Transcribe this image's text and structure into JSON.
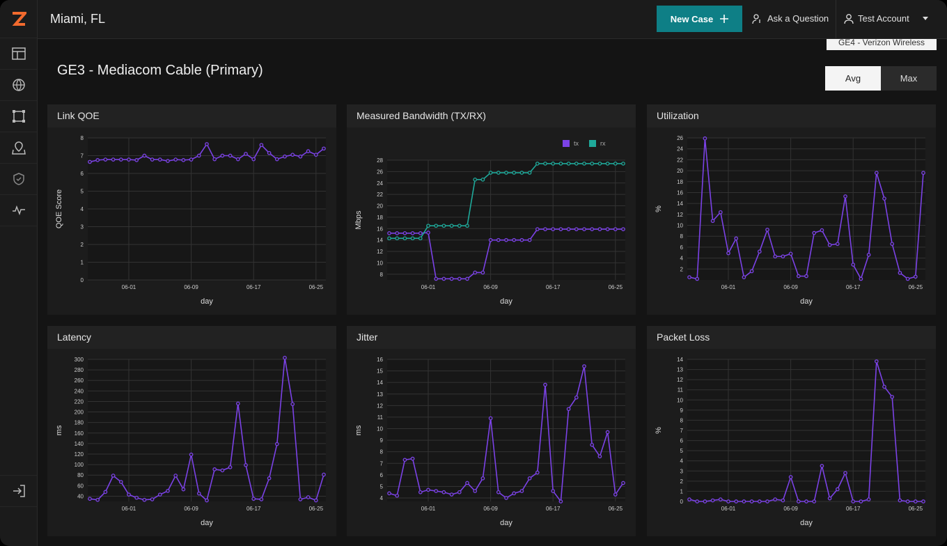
{
  "header": {
    "location": "Miami, FL",
    "new_case": "New Case",
    "ask": "Ask a Question",
    "account": "Test Account"
  },
  "page": {
    "hidden_selector": "GE4 - Verizon Wireless",
    "title": "GE3 - Mediacom Cable (Primary)",
    "toggle": [
      "Avg",
      "Max"
    ]
  },
  "chart_data": [
    {
      "type": "line",
      "title": "Link QOE",
      "x_label": "day",
      "y_label": "QOE Score",
      "grid": true,
      "x": [
        "05-27",
        "05-28",
        "05-29",
        "05-30",
        "05-31",
        "06-01",
        "06-02",
        "06-03",
        "06-04",
        "06-05",
        "06-06",
        "06-07",
        "06-08",
        "06-09",
        "06-10",
        "06-11",
        "06-12",
        "06-13",
        "06-14",
        "06-15",
        "06-16",
        "06-17",
        "06-18",
        "06-19",
        "06-20",
        "06-21",
        "06-22",
        "06-23",
        "06-24",
        "06-25",
        "06-26"
      ],
      "xticks": [
        "06-01",
        "06-09",
        "06-17",
        "06-25"
      ],
      "ylim": [
        0,
        8
      ],
      "yticks": [
        0,
        1,
        2,
        3,
        4,
        5,
        6,
        7,
        8
      ],
      "series": [
        {
          "color": "#7b42e6",
          "values": [
            6.65,
            6.75,
            6.78,
            6.78,
            6.78,
            6.78,
            6.75,
            7.0,
            6.78,
            6.78,
            6.7,
            6.78,
            6.75,
            6.78,
            7.0,
            7.65,
            6.8,
            7.0,
            7.0,
            6.8,
            7.1,
            6.8,
            7.6,
            7.15,
            6.8,
            6.95,
            7.05,
            6.95,
            7.25,
            7.05,
            7.4
          ]
        }
      ]
    },
    {
      "type": "line",
      "title": "Measured Bandwidth (TX/RX)",
      "x_label": "day",
      "y_label": "Mbps",
      "grid": true,
      "legend": "top-right",
      "x": [
        "05-27",
        "05-28",
        "05-29",
        "05-30",
        "05-31",
        "06-01",
        "06-02",
        "06-03",
        "06-04",
        "06-05",
        "06-06",
        "06-07",
        "06-08",
        "06-09",
        "06-10",
        "06-11",
        "06-12",
        "06-13",
        "06-14",
        "06-15",
        "06-16",
        "06-17",
        "06-18",
        "06-19",
        "06-20",
        "06-21",
        "06-22",
        "06-23",
        "06-24",
        "06-25",
        "06-26"
      ],
      "xticks": [
        "06-01",
        "06-09",
        "06-17",
        "06-25"
      ],
      "ylim": [
        7,
        28
      ],
      "yticks": [
        8,
        10,
        12,
        14,
        16,
        18,
        20,
        22,
        24,
        26,
        28
      ],
      "series": [
        {
          "name": "tx",
          "color": "#7b42e6",
          "values": [
            15.2,
            15.2,
            15.2,
            15.2,
            15.2,
            15.3,
            7.2,
            7.2,
            7.2,
            7.2,
            7.2,
            8.3,
            8.3,
            14,
            14,
            14,
            14,
            14,
            14,
            15.9,
            15.9,
            15.9,
            15.9,
            15.9,
            15.9,
            15.9,
            15.9,
            15.9,
            15.9,
            15.9,
            15.9
          ]
        },
        {
          "name": "rx",
          "color": "#1fa99a",
          "values": [
            14.3,
            14.3,
            14.3,
            14.3,
            14.3,
            16.5,
            16.5,
            16.5,
            16.5,
            16.5,
            16.5,
            24.6,
            24.6,
            25.8,
            25.8,
            25.8,
            25.8,
            25.8,
            25.8,
            27.4,
            27.4,
            27.4,
            27.4,
            27.4,
            27.4,
            27.4,
            27.4,
            27.4,
            27.4,
            27.4,
            27.4
          ]
        }
      ]
    },
    {
      "type": "line",
      "title": "Utilization",
      "x_label": "day",
      "y_label": "%",
      "grid": true,
      "x": [
        "05-27",
        "05-28",
        "05-29",
        "05-30",
        "05-31",
        "06-01",
        "06-02",
        "06-03",
        "06-04",
        "06-05",
        "06-06",
        "06-07",
        "06-08",
        "06-09",
        "06-10",
        "06-11",
        "06-12",
        "06-13",
        "06-14",
        "06-15",
        "06-16",
        "06-17",
        "06-18",
        "06-19",
        "06-20",
        "06-21",
        "06-22",
        "06-23",
        "06-24",
        "06-25",
        "06-26"
      ],
      "xticks": [
        "06-01",
        "06-09",
        "06-17",
        "06-25"
      ],
      "ylim": [
        0,
        26
      ],
      "yticks": [
        2,
        4,
        6,
        8,
        10,
        12,
        14,
        16,
        18,
        20,
        22,
        24,
        26
      ],
      "series": [
        {
          "color": "#7b42e6",
          "values": [
            0.5,
            0.2,
            25.9,
            10.8,
            12.4,
            4.9,
            7.6,
            0.5,
            1.6,
            5.2,
            9.2,
            4.3,
            4.3,
            4.8,
            0.7,
            0.7,
            8.6,
            9.1,
            6.4,
            6.6,
            15.3,
            2.8,
            0.2,
            4.6,
            19.6,
            14.9,
            6.6,
            1.3,
            0.2,
            0.6,
            19.6
          ]
        }
      ]
    },
    {
      "type": "line",
      "title": "Latency",
      "x_label": "day",
      "y_label": "ms",
      "grid": true,
      "x": [
        "05-27",
        "05-28",
        "05-29",
        "05-30",
        "05-31",
        "06-01",
        "06-02",
        "06-03",
        "06-04",
        "06-05",
        "06-06",
        "06-07",
        "06-08",
        "06-09",
        "06-10",
        "06-11",
        "06-12",
        "06-13",
        "06-14",
        "06-15",
        "06-16",
        "06-17",
        "06-18",
        "06-19",
        "06-20",
        "06-21",
        "06-22",
        "06-23",
        "06-24",
        "06-25",
        "06-26"
      ],
      "xticks": [
        "06-01",
        "06-09",
        "06-17",
        "06-25"
      ],
      "ylim": [
        30,
        300
      ],
      "yticks": [
        40,
        60,
        80,
        100,
        120,
        140,
        160,
        180,
        200,
        220,
        240,
        260,
        280,
        300
      ],
      "series": [
        {
          "color": "#7b42e6",
          "values": [
            35,
            33,
            48,
            79,
            67,
            43,
            37,
            33,
            34,
            43,
            50,
            79,
            53,
            119,
            45,
            32,
            91,
            89,
            95,
            216,
            99,
            35,
            34,
            74,
            139,
            303,
            215,
            34,
            38,
            32,
            81
          ]
        }
      ]
    },
    {
      "type": "line",
      "title": "Jitter",
      "x_label": "day",
      "y_label": "ms",
      "grid": true,
      "x": [
        "05-27",
        "05-28",
        "05-29",
        "05-30",
        "05-31",
        "06-01",
        "06-02",
        "06-03",
        "06-04",
        "06-05",
        "06-06",
        "06-07",
        "06-08",
        "06-09",
        "06-10",
        "06-11",
        "06-12",
        "06-13",
        "06-14",
        "06-15",
        "06-16",
        "06-17",
        "06-18",
        "06-19",
        "06-20",
        "06-21",
        "06-22",
        "06-23",
        "06-24",
        "06-25",
        "06-26"
      ],
      "xticks": [
        "06-01",
        "06-09",
        "06-17",
        "06-25"
      ],
      "ylim": [
        3.7,
        16
      ],
      "yticks": [
        4,
        5,
        6,
        7,
        8,
        9,
        10,
        11,
        12,
        13,
        14,
        15,
        16
      ],
      "series": [
        {
          "color": "#7b42e6",
          "values": [
            4.4,
            4.2,
            7.3,
            7.4,
            4.5,
            4.7,
            4.6,
            4.5,
            4.3,
            4.5,
            5.3,
            4.6,
            5.7,
            10.9,
            4.5,
            4.0,
            4.4,
            4.6,
            5.7,
            6.2,
            13.8,
            4.6,
            3.7,
            11.7,
            12.7,
            15.4,
            8.6,
            7.6,
            9.7,
            4.3,
            5.3
          ]
        }
      ]
    },
    {
      "type": "line",
      "title": "Packet Loss",
      "x_label": "day",
      "y_label": "%",
      "grid": true,
      "x": [
        "05-27",
        "05-28",
        "05-29",
        "05-30",
        "05-31",
        "06-01",
        "06-02",
        "06-03",
        "06-04",
        "06-05",
        "06-06",
        "06-07",
        "06-08",
        "06-09",
        "06-10",
        "06-11",
        "06-12",
        "06-13",
        "06-14",
        "06-15",
        "06-16",
        "06-17",
        "06-18",
        "06-19",
        "06-20",
        "06-21",
        "06-22",
        "06-23",
        "06-24",
        "06-25",
        "06-26"
      ],
      "xticks": [
        "06-01",
        "06-09",
        "06-17",
        "06-25"
      ],
      "ylim": [
        0,
        14
      ],
      "yticks": [
        0,
        1,
        2,
        3,
        4,
        5,
        6,
        7,
        8,
        9,
        10,
        11,
        12,
        13,
        14
      ],
      "series": [
        {
          "color": "#7b42e6",
          "values": [
            0.2,
            0,
            0,
            0.1,
            0.2,
            0,
            0,
            0,
            0,
            0,
            0,
            0.2,
            0.1,
            2.4,
            0,
            0,
            0,
            3.5,
            0.3,
            1.2,
            2.8,
            0,
            0,
            0.2,
            13.8,
            11.3,
            10.3,
            0.1,
            0,
            0,
            0
          ]
        }
      ]
    }
  ]
}
